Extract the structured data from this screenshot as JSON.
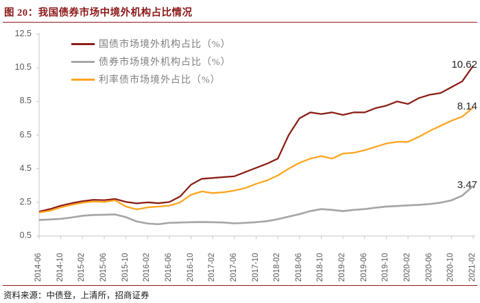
{
  "figure": {
    "title": "图 20：我国债券市场中境外机构占比情况",
    "source_note": "资料来源：中债登，上清所，招商证券"
  },
  "chart_data": {
    "type": "line",
    "title": "我国债券市场中境外机构占比情况",
    "grid": false,
    "legend_position": "top-left",
    "ylim": [
      0.5,
      12.5
    ],
    "y_ticks": [
      "12.5",
      "10.5",
      "8.5",
      "6.5",
      "4.5",
      "2.5",
      "0.5"
    ],
    "x_tick_labels": [
      "2014-06",
      "2014-10",
      "2015-02",
      "2015-06",
      "2015-10",
      "2016-02",
      "2016-06",
      "2016-10",
      "2017-02",
      "2017-06",
      "2017-10",
      "2018-02",
      "2018-06",
      "2018-10",
      "2019-02",
      "2019-06",
      "2019-10",
      "2020-02",
      "2020-06",
      "2020-10",
      "2021-02"
    ],
    "x_dates": [
      "2014-06",
      "2014-08",
      "2014-10",
      "2014-12",
      "2015-02",
      "2015-04",
      "2015-06",
      "2015-08",
      "2015-10",
      "2015-12",
      "2016-02",
      "2016-04",
      "2016-06",
      "2016-08",
      "2016-10",
      "2016-12",
      "2017-02",
      "2017-04",
      "2017-06",
      "2017-08",
      "2017-10",
      "2017-12",
      "2018-02",
      "2018-04",
      "2018-06",
      "2018-08",
      "2018-10",
      "2018-12",
      "2019-02",
      "2019-04",
      "2019-06",
      "2019-08",
      "2019-10",
      "2019-12",
      "2020-02",
      "2020-04",
      "2020-06",
      "2020-08",
      "2020-10",
      "2020-12",
      "2021-02"
    ],
    "series": [
      {
        "name": "国债市场境外机构占比（%）",
        "color": "#8B1E15",
        "end_label": "10.62",
        "values": [
          1.95,
          2.1,
          2.3,
          2.45,
          2.57,
          2.65,
          2.63,
          2.7,
          2.53,
          2.44,
          2.5,
          2.45,
          2.52,
          2.85,
          3.55,
          3.9,
          3.95,
          4.0,
          4.05,
          4.3,
          4.55,
          4.8,
          5.1,
          6.5,
          7.5,
          7.85,
          7.75,
          7.85,
          7.7,
          7.85,
          7.85,
          8.1,
          8.25,
          8.5,
          8.35,
          8.7,
          8.9,
          9.0,
          9.35,
          9.7,
          10.62
        ]
      },
      {
        "name": "债券市场境外机构占比（%）",
        "color": "#A6A6A6",
        "end_label": "3.47",
        "values": [
          1.45,
          1.48,
          1.52,
          1.6,
          1.7,
          1.75,
          1.76,
          1.78,
          1.62,
          1.36,
          1.24,
          1.2,
          1.28,
          1.3,
          1.32,
          1.33,
          1.32,
          1.3,
          1.25,
          1.28,
          1.32,
          1.38,
          1.5,
          1.65,
          1.8,
          1.98,
          2.1,
          2.05,
          1.98,
          2.05,
          2.1,
          2.18,
          2.25,
          2.28,
          2.32,
          2.35,
          2.4,
          2.48,
          2.62,
          2.9,
          3.47
        ]
      },
      {
        "name": "利率债市场境外占比（%）",
        "color": "#FFA41C",
        "end_label": "8.14",
        "values": [
          1.9,
          2.0,
          2.2,
          2.35,
          2.48,
          2.55,
          2.52,
          2.62,
          2.25,
          2.08,
          2.2,
          2.25,
          2.3,
          2.5,
          2.95,
          3.15,
          3.05,
          3.1,
          3.2,
          3.35,
          3.6,
          3.8,
          4.1,
          4.5,
          4.85,
          5.1,
          5.25,
          5.1,
          5.4,
          5.45,
          5.6,
          5.8,
          6.0,
          6.1,
          6.1,
          6.4,
          6.75,
          7.05,
          7.35,
          7.6,
          8.14
        ]
      }
    ]
  }
}
